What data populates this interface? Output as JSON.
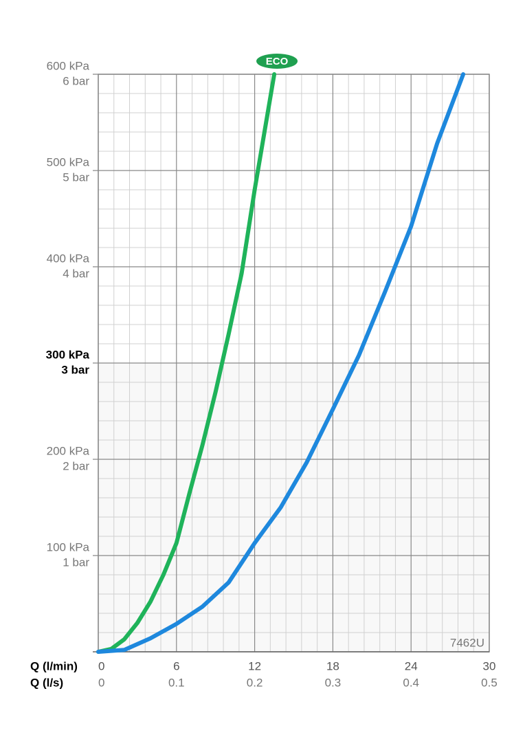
{
  "chart_data": {
    "type": "line",
    "xlabel": "Q (l/min)",
    "x2label": "Q (l/s)",
    "xlim": [
      0,
      30
    ],
    "xticks": [
      0,
      6,
      12,
      18,
      24,
      30
    ],
    "x2lim": [
      0,
      0.5
    ],
    "x2ticks": [
      0,
      0.1,
      0.2,
      0.3,
      0.4,
      0.5
    ],
    "ylim": [
      0,
      600
    ],
    "yticks": [
      {
        "value": 100,
        "label": "100 kPa"
      },
      {
        "value": 200,
        "label": "200 kPa"
      },
      {
        "value": 300,
        "label": "300 kPa"
      },
      {
        "value": 400,
        "label": "400 kPa"
      },
      {
        "value": 500,
        "label": "500 kPa"
      },
      {
        "value": 600,
        "label": "600 kPa"
      }
    ],
    "y2lim": [
      0,
      6
    ],
    "y2ticks": [
      {
        "value": 1,
        "label": "1 bar"
      },
      {
        "value": 2,
        "label": "2 bar"
      },
      {
        "value": 3,
        "label": "3 bar"
      },
      {
        "value": 4,
        "label": "4 bar"
      },
      {
        "value": 5,
        "label": "5 bar"
      },
      {
        "value": 6,
        "label": "6 bar"
      }
    ],
    "bold_ytick": 300,
    "grid": true,
    "annotations": {
      "eco": "ECO",
      "code": "7462U"
    },
    "series": [
      {
        "color": "#1fb35a",
        "x": [
          0,
          1,
          2,
          3,
          4,
          5,
          6,
          7,
          8,
          9,
          10,
          11,
          12,
          13,
          13.5
        ],
        "values": [
          0,
          3,
          13,
          30,
          52,
          80,
          113,
          165,
          215,
          270,
          330,
          393,
          480,
          560,
          600
        ]
      },
      {
        "color": "#1e88dd",
        "x": [
          0,
          2,
          4,
          6,
          8,
          10,
          12,
          14,
          16,
          18,
          20,
          22,
          24,
          26,
          28
        ],
        "values": [
          0,
          2,
          14,
          29,
          47,
          72,
          113,
          150,
          197,
          252,
          308,
          374,
          442,
          528,
          600
        ]
      }
    ]
  }
}
